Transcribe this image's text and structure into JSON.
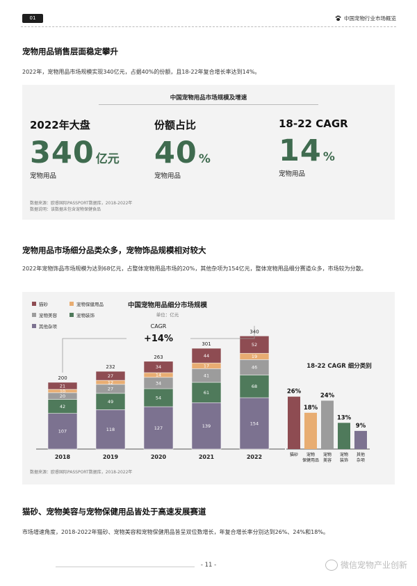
{
  "header": {
    "page_badge": "01",
    "title": "中国宠物行业市场概览"
  },
  "section1": {
    "title": "宠物用品销售层面稳定攀升",
    "text": "2022年，宠物用品市场规模实现340亿元，占据40%的份额，且18-22年复合增长率达到14%。"
  },
  "card1": {
    "title": "中国宠物用品市场规模及增速",
    "stats": [
      {
        "label": "2022年大盘",
        "value": "340",
        "unit": "亿元",
        "sub": "宠物用品"
      },
      {
        "label": "份额占比",
        "value": "40",
        "unit": "%",
        "sub": "宠物用品"
      },
      {
        "label": "18-22 CAGR",
        "value": "14",
        "unit": "%",
        "sub": "宠物用品"
      }
    ],
    "note1": "数据来源：欧睿国际PASSPORT数据库，2018-2022年",
    "note2": "数据说明：该数据未包含宠物保健食品"
  },
  "section2": {
    "title": "宠物用品市场细分品类众多，宠物饰品规模相对较大",
    "text": "2022年宠物饰品市场规模为达到68亿元，占整体宠物用品市场的20%，其他杂项为154亿元，整体宠物用品细分赛道众多，市场较为分散。"
  },
  "card2": {
    "note": "数据来源：欧睿国际PASSPORT数据库，2018-2022年"
  },
  "section3": {
    "title": "猫砂、宠物美容与宠物保健用品皆处于高速发展赛道",
    "text": "市场增速角度，2018-2022年猫砂、宠物美容和宠物保健用品皆呈双位数增长，年复合增长率分别达到26%、24%和18%。"
  },
  "footer": {
    "page": "- 11 -",
    "watermark": "微信宠物产业创新"
  },
  "colors": {
    "litter": "#8e4c52",
    "health": "#e8ad72",
    "beauty": "#9c9c9c",
    "accessory": "#4f7a5b",
    "other": "#7c7290",
    "accent": "#3f6b4f"
  },
  "chart_data": [
    {
      "type": "bar",
      "stacked": true,
      "title": "中国宠物用品细分市场规模",
      "subtitle": "单位：亿元",
      "categories": [
        "2018",
        "2019",
        "2020",
        "2021",
        "2022"
      ],
      "series": [
        {
          "name": "其他杂项",
          "key": "other",
          "values": [
            107,
            118,
            127,
            139,
            154
          ]
        },
        {
          "name": "宠物装饰",
          "key": "accessory",
          "values": [
            42,
            49,
            54,
            61,
            68
          ]
        },
        {
          "name": "宠物美容",
          "key": "beauty",
          "values": [
            20,
            27,
            34,
            41,
            46
          ]
        },
        {
          "name": "宠物保健用品",
          "key": "health",
          "values": [
            10,
            12,
            14,
            17,
            19
          ]
        },
        {
          "name": "猫砂",
          "key": "litter",
          "values": [
            21,
            27,
            34,
            44,
            52
          ]
        }
      ],
      "totals": [
        200,
        232,
        263,
        301,
        340
      ],
      "legend": [
        "猫砂",
        "宠物保健用品",
        "宠物美容",
        "宠物装饰",
        "其他杂项"
      ],
      "legend_position": "top-left",
      "annotation": {
        "label": "CAGR",
        "value": "+14%"
      }
    },
    {
      "type": "bar",
      "title": "18-22 CAGR 细分类别",
      "categories": [
        "猫砂",
        "宠物保健用品",
        "宠物美容",
        "宠物装饰",
        "其他杂项"
      ],
      "category_lines": [
        [
          "猫砂"
        ],
        [
          "宠物",
          "保健用品"
        ],
        [
          "宠物",
          "美容"
        ],
        [
          "宠物",
          "装饰"
        ],
        [
          "其他",
          "杂项"
        ]
      ],
      "keys": [
        "litter",
        "health",
        "beauty",
        "accessory",
        "other"
      ],
      "values": [
        26,
        18,
        24,
        13,
        9
      ],
      "value_labels": [
        "26%",
        "18%",
        "24%",
        "13%",
        "9%"
      ]
    }
  ]
}
